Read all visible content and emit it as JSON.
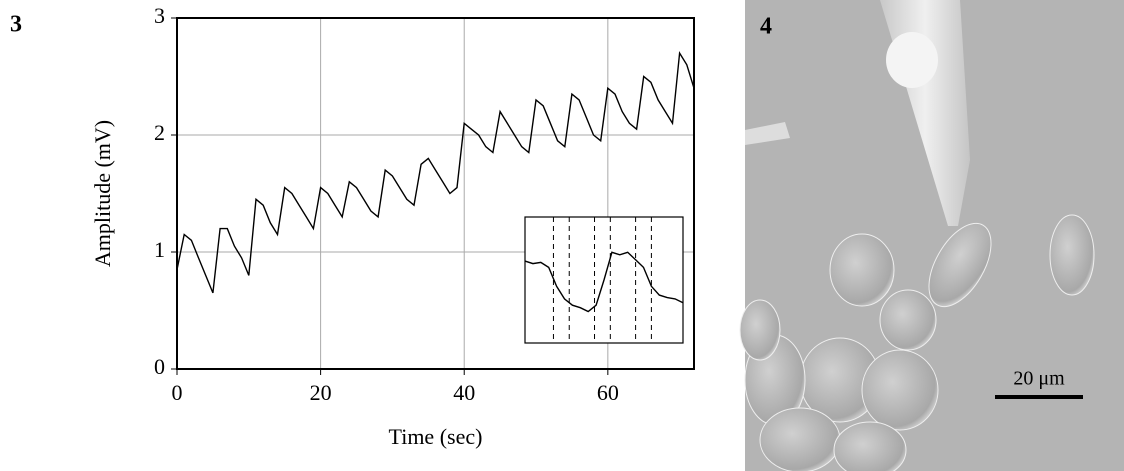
{
  "figure": {
    "panels": [
      "3",
      "4"
    ],
    "scale_bar": "20 μm"
  },
  "chart_data": [
    {
      "type": "line",
      "color": "#000000",
      "ylabel": "Amplitude (mV)",
      "xlabel": "Time (sec)",
      "xlim": [
        0,
        72
      ],
      "ylim": [
        0,
        3
      ],
      "xticks": [
        0,
        20,
        40,
        60
      ],
      "yticks": [
        0,
        1,
        2,
        3
      ],
      "grid": true,
      "x": [
        0,
        1,
        2,
        3,
        4,
        5,
        6,
        7,
        8,
        9,
        10,
        11,
        12,
        13,
        14,
        15,
        16,
        17,
        18,
        19,
        20,
        21,
        22,
        23,
        24,
        25,
        26,
        27,
        28,
        29,
        30,
        31,
        32,
        33,
        34,
        35,
        36,
        37,
        38,
        39,
        40,
        41,
        42,
        43,
        44,
        45,
        46,
        47,
        48,
        49,
        50,
        51,
        52,
        53,
        54,
        55,
        56,
        57,
        58,
        59,
        60,
        61,
        62,
        63,
        64,
        65,
        66,
        67,
        68,
        69,
        70,
        71,
        72
      ],
      "values": [
        0.85,
        1.15,
        1.1,
        0.95,
        0.8,
        0.65,
        1.2,
        1.2,
        1.05,
        0.95,
        0.8,
        1.45,
        1.4,
        1.25,
        1.15,
        1.55,
        1.5,
        1.4,
        1.3,
        1.2,
        1.55,
        1.5,
        1.4,
        1.3,
        1.6,
        1.55,
        1.45,
        1.35,
        1.3,
        1.7,
        1.65,
        1.55,
        1.45,
        1.4,
        1.75,
        1.8,
        1.7,
        1.6,
        1.5,
        1.55,
        2.1,
        2.05,
        2.0,
        1.9,
        1.85,
        2.2,
        2.1,
        2.0,
        1.9,
        1.85,
        2.3,
        2.25,
        2.1,
        1.95,
        1.9,
        2.35,
        2.3,
        2.15,
        2.0,
        1.95,
        2.4,
        2.35,
        2.2,
        2.1,
        2.05,
        2.5,
        2.45,
        2.3,
        2.2,
        2.1,
        2.7,
        2.6,
        2.4
      ]
    },
    {
      "type": "line",
      "color": "#000000",
      "xlim": [
        0,
        1
      ],
      "ylim": [
        0,
        1
      ],
      "x": [
        0,
        0.05,
        0.1,
        0.15,
        0.2,
        0.25,
        0.3,
        0.35,
        0.4,
        0.45,
        0.5,
        0.55,
        0.6,
        0.65,
        0.7,
        0.75,
        0.8,
        0.85,
        0.9,
        0.95,
        1
      ],
      "values": [
        0.65,
        0.63,
        0.64,
        0.6,
        0.45,
        0.35,
        0.3,
        0.28,
        0.25,
        0.3,
        0.5,
        0.72,
        0.7,
        0.72,
        0.66,
        0.6,
        0.45,
        0.38,
        0.36,
        0.35,
        0.32
      ],
      "dashed_x": [
        0.18,
        0.28,
        0.44,
        0.54,
        0.7,
        0.8
      ]
    }
  ]
}
